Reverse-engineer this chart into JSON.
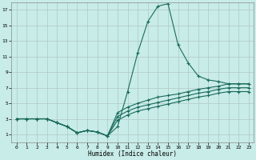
{
  "title": "",
  "xlabel": "Humidex (Indice chaleur)",
  "ylabel": "",
  "bg_color": "#c8ece8",
  "grid_color": "#b0c8c4",
  "line_color": "#1a6b5a",
  "xlim": [
    -0.5,
    23.5
  ],
  "ylim": [
    0,
    18
  ],
  "xticks": [
    0,
    1,
    2,
    3,
    4,
    5,
    6,
    7,
    8,
    9,
    10,
    11,
    12,
    13,
    14,
    15,
    16,
    17,
    18,
    19,
    20,
    21,
    22,
    23
  ],
  "yticks": [
    1,
    3,
    5,
    7,
    9,
    11,
    13,
    15,
    17
  ],
  "series": [
    {
      "x": [
        0,
        1,
        2,
        3,
        4,
        5,
        6,
        7,
        8,
        9,
        10,
        11,
        12,
        13,
        14,
        15,
        16,
        17,
        18,
        19,
        20,
        21,
        22,
        23
      ],
      "y": [
        3,
        3,
        3,
        3,
        2.5,
        2,
        1.2,
        1.5,
        1.3,
        0.8,
        2.0,
        6.5,
        11.5,
        15.5,
        17.5,
        17.8,
        12.5,
        10.2,
        8.5,
        8.0,
        7.8,
        7.5,
        7.5,
        7.5
      ]
    },
    {
      "x": [
        0,
        1,
        2,
        3,
        4,
        5,
        6,
        7,
        8,
        9,
        10,
        11,
        12,
        13,
        14,
        15,
        16,
        17,
        18,
        19,
        20,
        21,
        22,
        23
      ],
      "y": [
        3,
        3,
        3,
        3,
        2.5,
        2,
        1.2,
        1.5,
        1.3,
        0.8,
        3.8,
        4.5,
        5.0,
        5.4,
        5.8,
        6.0,
        6.2,
        6.5,
        6.8,
        7.0,
        7.2,
        7.5,
        7.5,
        7.5
      ]
    },
    {
      "x": [
        0,
        1,
        2,
        3,
        4,
        5,
        6,
        7,
        8,
        9,
        10,
        11,
        12,
        13,
        14,
        15,
        16,
        17,
        18,
        19,
        20,
        21,
        22,
        23
      ],
      "y": [
        3,
        3,
        3,
        3,
        2.5,
        2,
        1.2,
        1.5,
        1.3,
        0.8,
        3.3,
        4.0,
        4.5,
        4.8,
        5.1,
        5.4,
        5.7,
        6.0,
        6.3,
        6.5,
        6.8,
        7.0,
        7.0,
        7.0
      ]
    },
    {
      "x": [
        0,
        1,
        2,
        3,
        4,
        5,
        6,
        7,
        8,
        9,
        10,
        11,
        12,
        13,
        14,
        15,
        16,
        17,
        18,
        19,
        20,
        21,
        22,
        23
      ],
      "y": [
        3,
        3,
        3,
        3,
        2.5,
        2,
        1.2,
        1.5,
        1.3,
        0.8,
        2.8,
        3.5,
        4.0,
        4.3,
        4.6,
        4.9,
        5.2,
        5.5,
        5.8,
        6.0,
        6.3,
        6.5,
        6.5,
        6.5
      ]
    }
  ]
}
